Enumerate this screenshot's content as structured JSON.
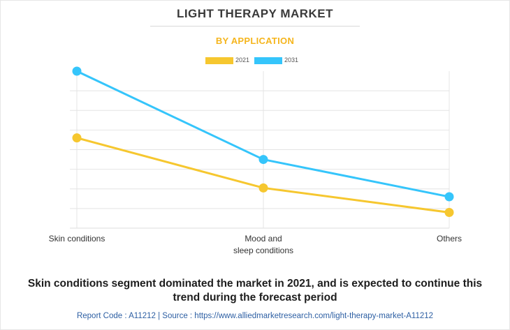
{
  "header": {
    "title": "LIGHT THERAPY MARKET",
    "subtitle": "BY APPLICATION"
  },
  "colors": {
    "series_2021": "#f6c72f",
    "series_2031": "#35c5fb",
    "grid": "#e4e4e4",
    "subtitle": "#f5b51d",
    "footer": "#2d5fa3"
  },
  "chart_data": {
    "type": "line",
    "title": "LIGHT THERAPY MARKET",
    "subtitle": "BY APPLICATION",
    "categories": [
      "Skin conditions",
      "Mood and sleep conditions",
      "Others"
    ],
    "category_lines": [
      [
        "Skin conditions"
      ],
      [
        "Mood and",
        "sleep conditions"
      ],
      [
        "Others"
      ]
    ],
    "series": [
      {
        "name": "2021",
        "values": [
          4.6,
          2.05,
          0.8
        ]
      },
      {
        "name": "2031",
        "values": [
          8.0,
          3.5,
          1.6
        ]
      }
    ],
    "xlabel": "",
    "ylabel": "",
    "ylim": [
      0,
      8.0
    ],
    "grid": true,
    "y_tick_labels_shown": false,
    "legend_position": "top-center"
  },
  "caption": "Skin conditions segment dominated the market in 2021, and is expected to continue this trend during the forecast period",
  "footer": "Report Code : A11212  |  Source : https://www.alliedmarketresearch.com/light-therapy-market-A11212"
}
